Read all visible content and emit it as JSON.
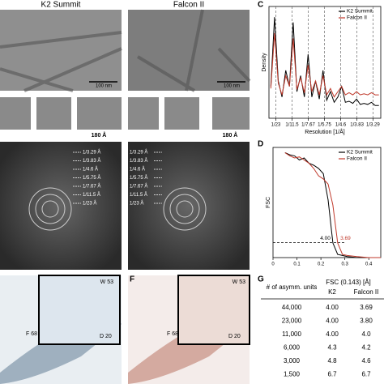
{
  "panel_labels": [
    "C",
    "D",
    "F",
    "G"
  ],
  "micrographs": {
    "titles": [
      "K2 Summit",
      "Falcon II"
    ],
    "scalebars": [
      "100 nm",
      "100 nm"
    ],
    "crop_scalebars": [
      "180 Å",
      "180 Å"
    ]
  },
  "fft_labels": [
    "1/3.29 Å",
    "1/3.83 Å",
    "1/4.6 Å",
    "1/5.75 Å",
    "1/7.67 Å",
    "1/11.5 Å",
    "1/23 Å"
  ],
  "maps": [
    [
      "W 53",
      "F 68",
      "D 20"
    ],
    [
      "W 53",
      "F 68",
      "D 20"
    ]
  ],
  "chart_data": [
    {
      "type": "line",
      "ylabel": "Density",
      "xlabel": "Resolution [1/Å]",
      "legend": "upper right",
      "grid": true,
      "x": [
        0.03,
        0.04,
        0.05,
        0.06,
        0.07,
        0.08,
        0.09,
        0.1,
        0.11,
        0.12,
        0.13,
        0.14,
        0.15,
        0.16,
        0.17,
        0.18,
        0.19,
        0.2,
        0.21,
        0.22,
        0.23,
        0.24,
        0.25,
        0.26,
        0.27,
        0.28,
        0.29,
        0.3,
        0.31,
        0.32
      ],
      "series": [
        {
          "name": "K2 Summit",
          "color": "#000000",
          "values": [
            0.3,
            0.95,
            0.35,
            0.2,
            0.45,
            0.3,
            0.9,
            0.25,
            0.4,
            0.2,
            0.6,
            0.2,
            0.35,
            0.18,
            0.45,
            0.17,
            0.25,
            0.15,
            0.2,
            0.3,
            0.15,
            0.16,
            0.14,
            0.18,
            0.13,
            0.14,
            0.13,
            0.15,
            0.12,
            0.12
          ]
        },
        {
          "name": "Falcon II",
          "color": "#c0392b",
          "values": [
            0.28,
            0.8,
            0.33,
            0.22,
            0.4,
            0.3,
            0.75,
            0.27,
            0.38,
            0.24,
            0.5,
            0.25,
            0.35,
            0.22,
            0.4,
            0.22,
            0.28,
            0.2,
            0.25,
            0.3,
            0.22,
            0.24,
            0.22,
            0.25,
            0.22,
            0.23,
            0.22,
            0.24,
            0.22,
            0.22
          ]
        }
      ],
      "xlim": [
        0.025,
        0.325
      ],
      "ylim": [
        0,
        1.05
      ],
      "xticks": [
        {
          "value": 0.0435,
          "label": "1/23"
        },
        {
          "value": 0.087,
          "label": "1/11.5"
        },
        {
          "value": 0.1304,
          "label": "1/7.67"
        },
        {
          "value": 0.1739,
          "label": "1/5.75"
        },
        {
          "value": 0.2174,
          "label": "1/4.6"
        },
        {
          "value": 0.2611,
          "label": "1/3.83"
        },
        {
          "value": 0.304,
          "label": "1/3.29"
        }
      ]
    },
    {
      "type": "line",
      "ylabel": "FSC",
      "legend": "upper right",
      "grid": false,
      "x": [
        0.05,
        0.07,
        0.09,
        0.11,
        0.13,
        0.15,
        0.17,
        0.19,
        0.21,
        0.23,
        0.25,
        0.27,
        0.29,
        0.31,
        0.35,
        0.4,
        0.45
      ],
      "series": [
        {
          "name": "K2 Summit",
          "color": "#000000",
          "values": [
            1,
            0.98,
            0.97,
            0.93,
            0.95,
            0.9,
            0.88,
            0.85,
            0.8,
            0.55,
            0.14,
            0.03,
            0.02,
            0.01,
            0,
            0,
            0
          ]
        },
        {
          "name": "Falcon II",
          "color": "#c0392b",
          "values": [
            1,
            0.97,
            0.95,
            0.96,
            0.93,
            0.9,
            0.85,
            0.78,
            0.75,
            0.7,
            0.5,
            0.14,
            0.03,
            0.02,
            0.01,
            0,
            0
          ]
        }
      ],
      "xlim": [
        0,
        0.45
      ],
      "ylim": [
        0,
        1.05
      ],
      "xticks": [
        0,
        0.1,
        0.2,
        0.3,
        0.4
      ],
      "threshold": 0.143,
      "annotations": [
        {
          "value": 4.0,
          "label": "4.00",
          "color": "#000000"
        },
        {
          "value": 3.69,
          "label": "3.69",
          "color": "#c0392b"
        }
      ]
    }
  ],
  "table": {
    "headers": [
      "# of asymm. units",
      "FSC (0.143) [Å]"
    ],
    "subheaders": [
      "K2",
      "Falcon II"
    ],
    "rows": [
      [
        "44,000",
        "4.00",
        "3.69"
      ],
      [
        "23,000",
        "4.00",
        "3.80"
      ],
      [
        "11,000",
        "4.00",
        "4.0"
      ],
      [
        "6,000",
        "4.3",
        "4.2"
      ],
      [
        "3,000",
        "4.8",
        "4.6"
      ],
      [
        "1,500",
        "6.7",
        "6.7"
      ]
    ]
  }
}
